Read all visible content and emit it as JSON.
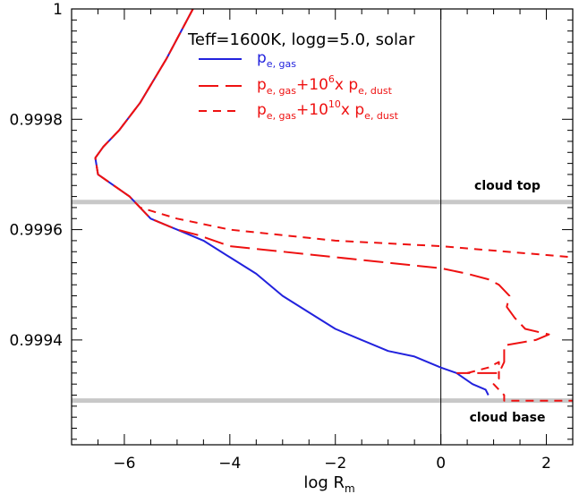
{
  "chart_data": {
    "type": "line",
    "title": "Teff=1600K, logg=5.0, solar",
    "xlabel": {
      "main": "log R",
      "sub": "m"
    },
    "ylabel": "",
    "xlim": [
      -7.0,
      2.5
    ],
    "ylim": [
      0.99921,
      1.0
    ],
    "xticks": [
      -6,
      -4,
      -2,
      0,
      2
    ],
    "xtick_labels": [
      "−6",
      "−4",
      "−2",
      "0",
      "2"
    ],
    "yticks": [
      0.9994,
      0.9996,
      0.9998,
      1.0
    ],
    "ytick_labels": [
      "0.9994",
      "0.9996",
      "0.9998",
      "1"
    ],
    "grid": false,
    "legend_position": "top-center",
    "series": [
      {
        "name_parts": [
          {
            "t": "p",
            "k": "n"
          },
          {
            "t": "e, gas",
            "k": "sub"
          }
        ],
        "color": "#2222dd",
        "dash": "solid",
        "points": [
          [
            -4.7,
            1.0
          ],
          [
            -5.2,
            0.99991
          ],
          [
            -5.7,
            0.99983
          ],
          [
            -6.1,
            0.99978
          ],
          [
            -6.4,
            0.99975
          ],
          [
            -6.55,
            0.99973
          ],
          [
            -6.5,
            0.9997
          ],
          [
            -6.2,
            0.99968
          ],
          [
            -5.9,
            0.99966
          ],
          [
            -5.5,
            0.99962
          ],
          [
            -5.0,
            0.9996
          ],
          [
            -4.5,
            0.99958
          ],
          [
            -4.0,
            0.99955
          ],
          [
            -3.5,
            0.99952
          ],
          [
            -3.0,
            0.99948
          ],
          [
            -2.5,
            0.99945
          ],
          [
            -2.0,
            0.99942
          ],
          [
            -1.5,
            0.9994
          ],
          [
            -1.0,
            0.99938
          ],
          [
            -0.5,
            0.99937
          ],
          [
            0.0,
            0.99935
          ],
          [
            0.3,
            0.99934
          ],
          [
            0.6,
            0.99932
          ],
          [
            0.85,
            0.99931
          ],
          [
            0.9,
            0.9993
          ]
        ]
      },
      {
        "name_parts": [
          {
            "t": "p",
            "k": "n"
          },
          {
            "t": "e, gas",
            "k": "sub"
          },
          {
            "t": "+10",
            "k": "n"
          },
          {
            "t": "6",
            "k": "sup"
          },
          {
            "t": "x p",
            "k": "n"
          },
          {
            "t": "e, dust",
            "k": "sub"
          }
        ],
        "color": "#ee1111",
        "dash": "long-dash",
        "points": [
          [
            -4.7,
            1.0
          ],
          [
            -5.2,
            0.99991
          ],
          [
            -5.7,
            0.99983
          ],
          [
            -6.1,
            0.99978
          ],
          [
            -6.4,
            0.99975
          ],
          [
            -6.55,
            0.99973
          ],
          [
            -6.5,
            0.9997
          ],
          [
            -6.2,
            0.99968
          ],
          [
            -5.9,
            0.99966
          ],
          [
            -5.5,
            0.99962
          ],
          [
            -5.0,
            0.9996
          ],
          [
            -4.6,
            0.99959
          ],
          [
            -4.0,
            0.99957
          ],
          [
            -3.0,
            0.99956
          ],
          [
            -2.0,
            0.99955
          ],
          [
            -1.0,
            0.99954
          ],
          [
            0.0,
            0.99953
          ],
          [
            0.5,
            0.99952
          ],
          [
            0.9,
            0.99951
          ],
          [
            1.1,
            0.9995
          ],
          [
            1.3,
            0.99948
          ],
          [
            1.25,
            0.99946
          ],
          [
            1.4,
            0.99944
          ],
          [
            1.6,
            0.99942
          ],
          [
            2.05,
            0.99941
          ],
          [
            1.8,
            0.9994
          ],
          [
            1.2,
            0.99939
          ],
          [
            1.2,
            0.99936
          ],
          [
            1.1,
            0.99934
          ],
          [
            0.8,
            0.99934
          ],
          [
            0.5,
            0.99934
          ],
          [
            0.3,
            0.99934
          ]
        ]
      },
      {
        "name_parts": [
          {
            "t": "p",
            "k": "n"
          },
          {
            "t": "e, gas",
            "k": "sub"
          },
          {
            "t": "+10",
            "k": "n"
          },
          {
            "t": "10",
            "k": "sup"
          },
          {
            "t": "x p",
            "k": "n"
          },
          {
            "t": "e, dust",
            "k": "sub"
          }
        ],
        "color": "#ee1111",
        "dash": "short-dash",
        "points": [
          [
            -4.7,
            1.0
          ],
          [
            -5.2,
            0.99991
          ],
          [
            -5.7,
            0.99983
          ],
          [
            -6.1,
            0.99978
          ],
          [
            -6.4,
            0.99975
          ],
          [
            -6.55,
            0.99973
          ],
          [
            -6.5,
            0.9997
          ],
          [
            -6.2,
            0.99968
          ],
          [
            -5.9,
            0.99966
          ],
          [
            -5.7,
            0.99964
          ],
          [
            -5.0,
            0.99962
          ],
          [
            -4.0,
            0.9996
          ],
          [
            -2.0,
            0.99958
          ],
          [
            0.0,
            0.99957
          ],
          [
            2.5,
            0.99955
          ]
        ]
      },
      {
        "name_parts": [],
        "color": "#ee1111",
        "dash": "short-dash",
        "points": [
          [
            0.5,
            0.99934
          ],
          [
            0.9,
            0.99935
          ],
          [
            1.1,
            0.99936
          ],
          [
            1.1,
            0.99933
          ],
          [
            1.0,
            0.99932
          ],
          [
            1.1,
            0.99931
          ],
          [
            1.2,
            0.9993
          ],
          [
            1.2,
            0.99929
          ],
          [
            1.5,
            0.99929
          ],
          [
            2.5,
            0.99929
          ]
        ]
      }
    ],
    "hlines": [
      {
        "y": 0.99965,
        "label": "cloud top"
      },
      {
        "y": 0.99929,
        "label": "cloud base"
      }
    ],
    "vline": {
      "x": 0
    }
  }
}
